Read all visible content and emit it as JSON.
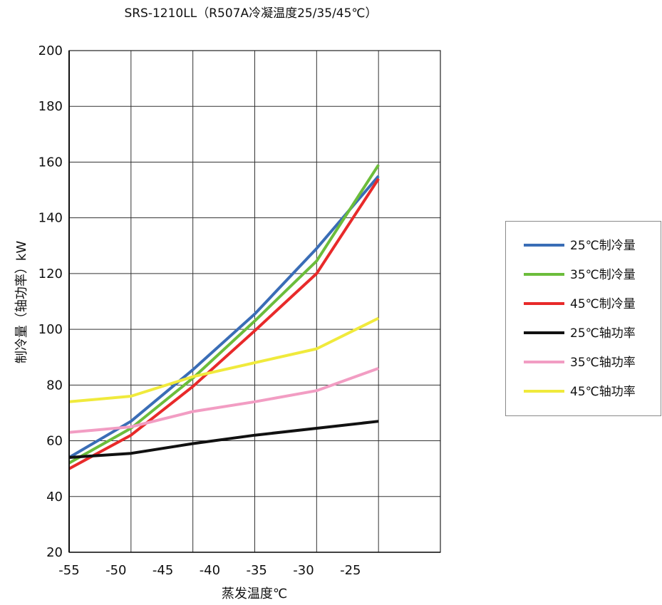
{
  "chart_data": {
    "type": "line",
    "title": "SRS-1210LL（R507A冷凝温度25/35/45℃）",
    "xlabel": "蒸发温度℃",
    "ylabel": "制冷量（轴功率）kW",
    "x": [
      -55,
      -50,
      -45,
      -40,
      -35,
      -30
    ],
    "xlim": [
      -55,
      -25
    ],
    "ylim": [
      20,
      200
    ],
    "x_ticks": [
      "-55",
      "-50",
      "-45",
      "-40",
      "-35",
      "-30",
      "-25"
    ],
    "y_ticks": [
      20,
      40,
      60,
      80,
      100,
      120,
      140,
      160,
      180,
      200
    ],
    "grid": true,
    "legend_position": "right",
    "series": [
      {
        "name": "25℃制冷量",
        "color": "#3a6db6",
        "values": [
          54,
          67,
          85.5,
          105.5,
          129,
          155
        ]
      },
      {
        "name": "35℃制冷量",
        "color": "#6cbd3b",
        "values": [
          52,
          64.5,
          82.5,
          103,
          124.5,
          159
        ]
      },
      {
        "name": "45℃制冷量",
        "color": "#e82a2a",
        "values": [
          50,
          62,
          79.5,
          99.5,
          120,
          154
        ]
      },
      {
        "name": "25℃轴功率",
        "color": "#111111",
        "values": [
          54,
          55.5,
          59,
          62,
          64.5,
          67
        ]
      },
      {
        "name": "35℃轴功率",
        "color": "#f29dc3",
        "values": [
          63,
          65,
          70.5,
          74,
          78,
          86
        ]
      },
      {
        "name": "45℃轴功率",
        "color": "#f0ea3c",
        "values": [
          74,
          76,
          83,
          88,
          93,
          104
        ]
      }
    ]
  }
}
